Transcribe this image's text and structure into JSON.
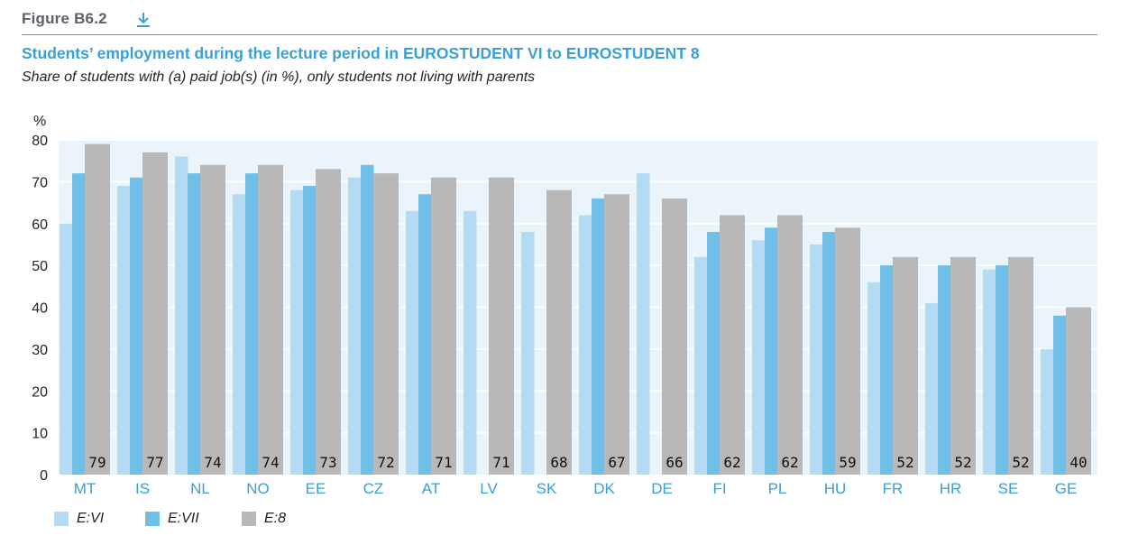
{
  "figure": {
    "label": "Figure B6.2",
    "download_icon": "download-icon"
  },
  "chart_data": {
    "type": "bar",
    "title": "Students’ employment during the lecture period in EUROSTUDENT VI to EUROSTUDENT 8",
    "subtitle": "Share of students with (a) paid job(s) (in %), only students not living with parents",
    "ylabel": "%",
    "ylim": [
      0,
      80
    ],
    "yticks": [
      0,
      10,
      20,
      30,
      40,
      50,
      60,
      70,
      80
    ],
    "grid": true,
    "legend_position": "bottom-left",
    "categories": [
      "MT",
      "IS",
      "NL",
      "NO",
      "EE",
      "CZ",
      "AT",
      "LV",
      "SK",
      "DK",
      "DE",
      "FI",
      "PL",
      "HU",
      "FR",
      "HR",
      "SE",
      "GE"
    ],
    "series": [
      {
        "name": "E:VI",
        "color": "#b3dcf2",
        "values": [
          60,
          69,
          76,
          67,
          68,
          71,
          63,
          63,
          58,
          62,
          72,
          52,
          56,
          55,
          46,
          41,
          49,
          30
        ]
      },
      {
        "name": "E:VII",
        "color": "#6fc0e8",
        "values": [
          72,
          71,
          72,
          72,
          69,
          74,
          67,
          null,
          null,
          66,
          null,
          58,
          59,
          58,
          50,
          50,
          50,
          38
        ]
      },
      {
        "name": "E:8",
        "color": "#b8b8b8",
        "values": [
          79,
          77,
          74,
          74,
          73,
          72,
          71,
          71,
          68,
          67,
          66,
          62,
          62,
          59,
          52,
          52,
          52,
          40
        ]
      }
    ],
    "data_labels": [
      "79",
      "77",
      "74",
      "74",
      "73",
      "72",
      "71",
      "71",
      "68",
      "67",
      "66",
      "62",
      "62",
      "59",
      "52",
      "52",
      "52",
      "40"
    ],
    "plot_background": "#eaf4fa",
    "tick_label_color": "#3a9fd6"
  }
}
